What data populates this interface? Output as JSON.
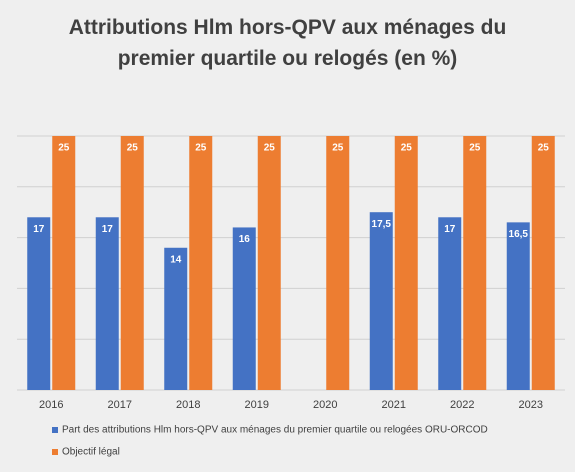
{
  "chart_data": {
    "type": "bar",
    "title": "Attributions Hlm hors-QPV aux ménages du premier quartile ou relogés (en %)",
    "categories": [
      "2016",
      "2017",
      "2018",
      "2019",
      "2020",
      "2021",
      "2022",
      "2023"
    ],
    "series": [
      {
        "name": "Part des attributions Hlm hors-QPV aux ménages du premier quartile ou relogées ORU-ORCOD",
        "color": "#4472c4",
        "values": [
          17,
          17,
          14,
          16,
          null,
          17.5,
          17,
          16.5
        ],
        "value_labels": [
          "17",
          "17",
          "14",
          "16",
          null,
          "17,5",
          "17",
          "16,5"
        ]
      },
      {
        "name": "Objectif légal",
        "color": "#ed7d31",
        "values": [
          25,
          25,
          25,
          25,
          25,
          25,
          25,
          25
        ]
      }
    ],
    "ylim": [
      0,
      25
    ],
    "yticks": [
      0,
      5,
      10,
      15,
      20,
      25
    ],
    "grid": true
  }
}
